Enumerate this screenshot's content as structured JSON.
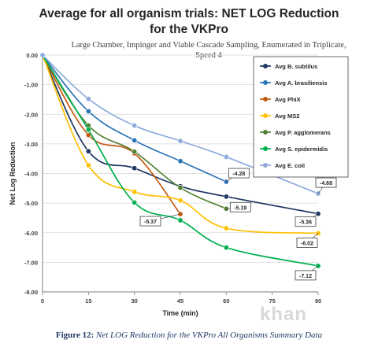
{
  "chart_data": {
    "type": "line",
    "title_line1": "Average for all organism trials: NET LOG Reduction",
    "title_line2": "for the VKPro",
    "subtitle_line1": "Large Chamber, Impinger and Viable Cascade Sampling, Enumerated in Triplicate,",
    "subtitle_line2": "Speed 4",
    "xlabel": "Time (min)",
    "ylabel": "Net Log Reduction",
    "x": [
      0,
      15,
      30,
      45,
      60,
      75,
      90
    ],
    "x_ticks": [
      "0",
      "15",
      "30",
      "45",
      "60",
      "75",
      "90"
    ],
    "y_ticks": [
      "0.00",
      "-1.00",
      "-2.00",
      "-3.00",
      "-4.00",
      "-5.00",
      "-6.00",
      "-7.00",
      "-8.00"
    ],
    "xlim": [
      0,
      90
    ],
    "ylim": [
      -8,
      0
    ],
    "legend_position": "top-right",
    "series": [
      {
        "name": "Avg B. subtilus",
        "color": "#1f3864",
        "points": [
          [
            0,
            0
          ],
          [
            15,
            -3.25
          ],
          [
            30,
            -3.82
          ],
          [
            45,
            -4.43
          ],
          [
            60,
            -4.78
          ],
          [
            90,
            -5.36
          ]
        ]
      },
      {
        "name": "Avg A. brasiliensis",
        "color": "#2e75b6",
        "points": [
          [
            0,
            0
          ],
          [
            15,
            -1.9
          ],
          [
            30,
            -2.88
          ],
          [
            45,
            -3.58
          ],
          [
            60,
            -4.28
          ]
        ]
      },
      {
        "name": "Avg PhiX",
        "color": "#c55a11",
        "points": [
          [
            0,
            0
          ],
          [
            15,
            -2.7
          ],
          [
            30,
            -3.32
          ],
          [
            45,
            -5.37
          ]
        ]
      },
      {
        "name": "Avg MS2",
        "color": "#ffc000",
        "points": [
          [
            0,
            0
          ],
          [
            15,
            -3.72
          ],
          [
            30,
            -4.62
          ],
          [
            45,
            -4.91
          ],
          [
            60,
            -5.85
          ],
          [
            90,
            -6.02
          ]
        ]
      },
      {
        "name": "Avg P. agglomerans",
        "color": "#548235",
        "points": [
          [
            0,
            0
          ],
          [
            15,
            -2.38
          ],
          [
            30,
            -3.26
          ],
          [
            45,
            -4.48
          ],
          [
            60,
            -5.19
          ]
        ]
      },
      {
        "name": "Avg S. epidermidis",
        "color": "#00b050",
        "points": [
          [
            0,
            0
          ],
          [
            15,
            -2.52
          ],
          [
            30,
            -4.98
          ],
          [
            45,
            -5.58
          ],
          [
            60,
            -6.5
          ],
          [
            90,
            -7.12
          ]
        ]
      },
      {
        "name": "Avg E. coli",
        "color": "#8eaadb",
        "points": [
          [
            0,
            0
          ],
          [
            15,
            -1.48
          ],
          [
            30,
            -2.38
          ],
          [
            45,
            -2.9
          ],
          [
            60,
            -3.44
          ],
          [
            90,
            -4.68
          ]
        ]
      }
    ],
    "annotations": [
      {
        "text": "-4.28",
        "x": 60,
        "y": -4.28
      },
      {
        "text": "-4.68",
        "x": 90,
        "y": -4.68
      },
      {
        "text": "-5.19",
        "x": 60,
        "y": -5.19
      },
      {
        "text": "-5.37",
        "x": 45,
        "y": -5.37
      },
      {
        "text": "-5.36",
        "x": 90,
        "y": -5.36
      },
      {
        "text": "-6.02",
        "x": 90,
        "y": -6.02
      },
      {
        "text": "-7.12",
        "x": 90,
        "y": -7.12
      }
    ]
  },
  "caption": {
    "label": "Figure 12:",
    "text": "Net LOG Reduction for the VKPro All Organisms Summary Data"
  },
  "watermark": "khan"
}
